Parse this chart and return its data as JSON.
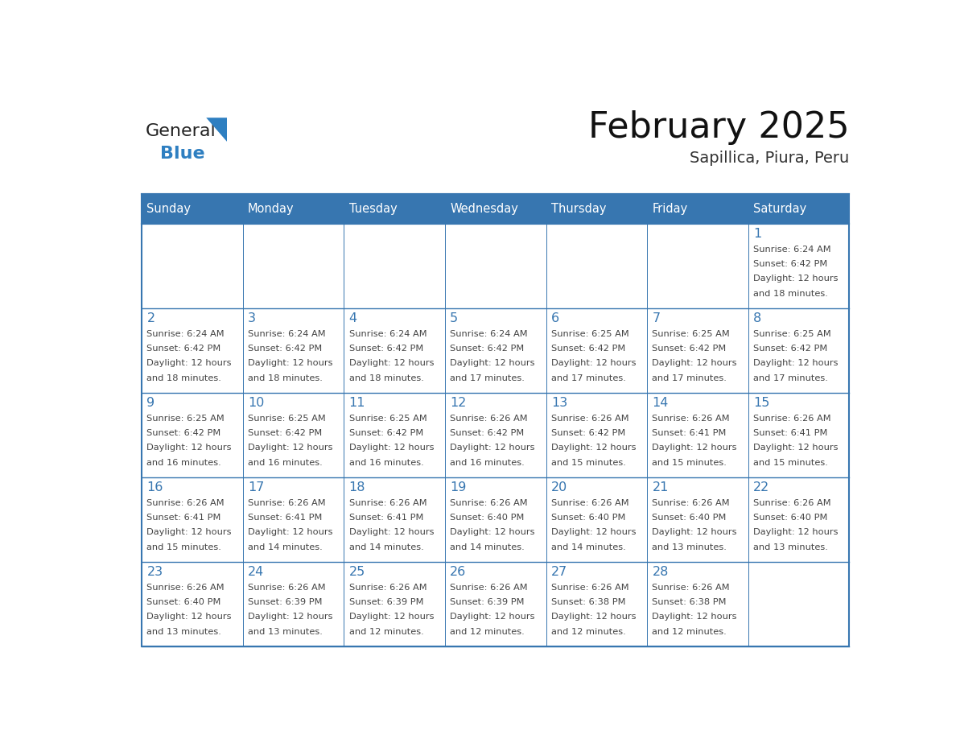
{
  "title": "February 2025",
  "subtitle": "Sapillica, Piura, Peru",
  "days_of_week": [
    "Sunday",
    "Monday",
    "Tuesday",
    "Wednesday",
    "Thursday",
    "Friday",
    "Saturday"
  ],
  "header_bg": "#3776B0",
  "header_text": "#FFFFFF",
  "border_color": "#3776B0",
  "day_number_color": "#3776B0",
  "text_color": "#444444",
  "logo_general_color": "#222222",
  "logo_blue_color": "#2E7FC1",
  "calendar_data": [
    [
      {
        "day": null,
        "info": ""
      },
      {
        "day": null,
        "info": ""
      },
      {
        "day": null,
        "info": ""
      },
      {
        "day": null,
        "info": ""
      },
      {
        "day": null,
        "info": ""
      },
      {
        "day": null,
        "info": ""
      },
      {
        "day": 1,
        "info": "Sunrise: 6:24 AM\nSunset: 6:42 PM\nDaylight: 12 hours\nand 18 minutes."
      }
    ],
    [
      {
        "day": 2,
        "info": "Sunrise: 6:24 AM\nSunset: 6:42 PM\nDaylight: 12 hours\nand 18 minutes."
      },
      {
        "day": 3,
        "info": "Sunrise: 6:24 AM\nSunset: 6:42 PM\nDaylight: 12 hours\nand 18 minutes."
      },
      {
        "day": 4,
        "info": "Sunrise: 6:24 AM\nSunset: 6:42 PM\nDaylight: 12 hours\nand 18 minutes."
      },
      {
        "day": 5,
        "info": "Sunrise: 6:24 AM\nSunset: 6:42 PM\nDaylight: 12 hours\nand 17 minutes."
      },
      {
        "day": 6,
        "info": "Sunrise: 6:25 AM\nSunset: 6:42 PM\nDaylight: 12 hours\nand 17 minutes."
      },
      {
        "day": 7,
        "info": "Sunrise: 6:25 AM\nSunset: 6:42 PM\nDaylight: 12 hours\nand 17 minutes."
      },
      {
        "day": 8,
        "info": "Sunrise: 6:25 AM\nSunset: 6:42 PM\nDaylight: 12 hours\nand 17 minutes."
      }
    ],
    [
      {
        "day": 9,
        "info": "Sunrise: 6:25 AM\nSunset: 6:42 PM\nDaylight: 12 hours\nand 16 minutes."
      },
      {
        "day": 10,
        "info": "Sunrise: 6:25 AM\nSunset: 6:42 PM\nDaylight: 12 hours\nand 16 minutes."
      },
      {
        "day": 11,
        "info": "Sunrise: 6:25 AM\nSunset: 6:42 PM\nDaylight: 12 hours\nand 16 minutes."
      },
      {
        "day": 12,
        "info": "Sunrise: 6:26 AM\nSunset: 6:42 PM\nDaylight: 12 hours\nand 16 minutes."
      },
      {
        "day": 13,
        "info": "Sunrise: 6:26 AM\nSunset: 6:42 PM\nDaylight: 12 hours\nand 15 minutes."
      },
      {
        "day": 14,
        "info": "Sunrise: 6:26 AM\nSunset: 6:41 PM\nDaylight: 12 hours\nand 15 minutes."
      },
      {
        "day": 15,
        "info": "Sunrise: 6:26 AM\nSunset: 6:41 PM\nDaylight: 12 hours\nand 15 minutes."
      }
    ],
    [
      {
        "day": 16,
        "info": "Sunrise: 6:26 AM\nSunset: 6:41 PM\nDaylight: 12 hours\nand 15 minutes."
      },
      {
        "day": 17,
        "info": "Sunrise: 6:26 AM\nSunset: 6:41 PM\nDaylight: 12 hours\nand 14 minutes."
      },
      {
        "day": 18,
        "info": "Sunrise: 6:26 AM\nSunset: 6:41 PM\nDaylight: 12 hours\nand 14 minutes."
      },
      {
        "day": 19,
        "info": "Sunrise: 6:26 AM\nSunset: 6:40 PM\nDaylight: 12 hours\nand 14 minutes."
      },
      {
        "day": 20,
        "info": "Sunrise: 6:26 AM\nSunset: 6:40 PM\nDaylight: 12 hours\nand 14 minutes."
      },
      {
        "day": 21,
        "info": "Sunrise: 6:26 AM\nSunset: 6:40 PM\nDaylight: 12 hours\nand 13 minutes."
      },
      {
        "day": 22,
        "info": "Sunrise: 6:26 AM\nSunset: 6:40 PM\nDaylight: 12 hours\nand 13 minutes."
      }
    ],
    [
      {
        "day": 23,
        "info": "Sunrise: 6:26 AM\nSunset: 6:40 PM\nDaylight: 12 hours\nand 13 minutes."
      },
      {
        "day": 24,
        "info": "Sunrise: 6:26 AM\nSunset: 6:39 PM\nDaylight: 12 hours\nand 13 minutes."
      },
      {
        "day": 25,
        "info": "Sunrise: 6:26 AM\nSunset: 6:39 PM\nDaylight: 12 hours\nand 12 minutes."
      },
      {
        "day": 26,
        "info": "Sunrise: 6:26 AM\nSunset: 6:39 PM\nDaylight: 12 hours\nand 12 minutes."
      },
      {
        "day": 27,
        "info": "Sunrise: 6:26 AM\nSunset: 6:38 PM\nDaylight: 12 hours\nand 12 minutes."
      },
      {
        "day": 28,
        "info": "Sunrise: 6:26 AM\nSunset: 6:38 PM\nDaylight: 12 hours\nand 12 minutes."
      },
      {
        "day": null,
        "info": ""
      }
    ]
  ],
  "fig_width": 11.88,
  "fig_height": 9.18
}
